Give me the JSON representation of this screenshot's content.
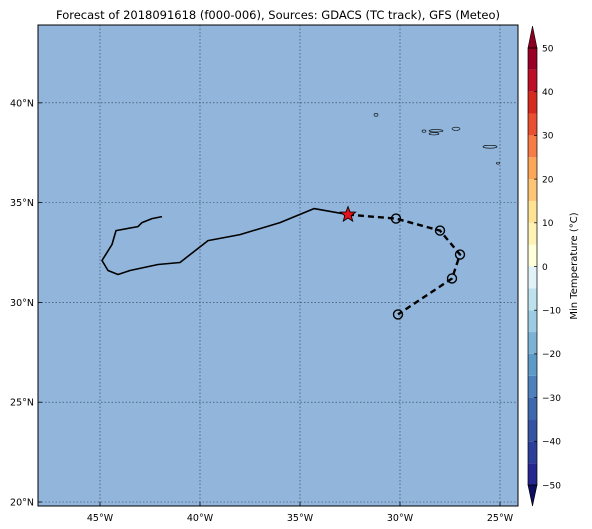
{
  "title": "Forecast of 2018091618 (f000-006), Sources: GDACS (TC track), GFS (Meteo)",
  "map": {
    "lon_range": [
      -48.1,
      -24.1
    ],
    "lat_range": [
      19.8,
      43.9
    ],
    "lon_ticks": [
      -45,
      -40,
      -35,
      -30,
      -25
    ],
    "lon_tick_labels": [
      "45°W",
      "40°W",
      "35°W",
      "30°W",
      "25°W"
    ],
    "lat_ticks": [
      20,
      25,
      30,
      35,
      40
    ],
    "lat_tick_labels": [
      "20°N",
      "25°N",
      "30°N",
      "35°N",
      "40°N"
    ],
    "ocean_color": "#92b5db",
    "grid": true
  },
  "track": {
    "past_color": "#000000",
    "past": [
      [
        -41.9,
        34.3
      ],
      [
        -42.4,
        34.2
      ],
      [
        -42.9,
        34.0
      ],
      [
        -43.1,
        33.8
      ],
      [
        -44.2,
        33.6
      ],
      [
        -44.4,
        32.9
      ],
      [
        -44.9,
        32.1
      ],
      [
        -44.6,
        31.6
      ],
      [
        -44.1,
        31.4
      ],
      [
        -43.5,
        31.6
      ],
      [
        -42.1,
        31.9
      ],
      [
        -41.0,
        32.0
      ],
      [
        -39.6,
        33.1
      ],
      [
        -38.0,
        33.4
      ],
      [
        -36.0,
        34.0
      ],
      [
        -34.3,
        34.7
      ],
      [
        -32.6,
        34.4
      ]
    ],
    "current_position": [
      -32.6,
      34.4
    ],
    "current_marker": "star",
    "current_color": "#e8101a",
    "forecast": [
      [
        -32.6,
        34.4
      ],
      [
        -30.2,
        34.2
      ],
      [
        -28.0,
        33.6
      ],
      [
        -27.0,
        32.4
      ],
      [
        -27.4,
        31.2
      ],
      [
        -30.1,
        29.4
      ]
    ],
    "forecast_points": [
      [
        -30.2,
        34.2
      ],
      [
        -28.0,
        33.6
      ],
      [
        -27.0,
        32.4
      ],
      [
        -27.4,
        31.2
      ],
      [
        -30.1,
        29.4
      ]
    ]
  },
  "islands": [
    {
      "name": "island-1",
      "lon": -31.2,
      "lat": 39.4,
      "rx": 0.1,
      "ry": 0.07
    },
    {
      "name": "island-2",
      "lon": -28.2,
      "lat": 38.6,
      "rx": 0.35,
      "ry": 0.06
    },
    {
      "name": "island-3",
      "lon": -28.3,
      "lat": 38.45,
      "rx": 0.25,
      "ry": 0.06
    },
    {
      "name": "island-4",
      "lon": -27.2,
      "lat": 38.7,
      "rx": 0.2,
      "ry": 0.08
    },
    {
      "name": "island-5",
      "lon": -28.8,
      "lat": 38.58,
      "rx": 0.1,
      "ry": 0.06
    },
    {
      "name": "island-6",
      "lon": -25.5,
      "lat": 37.8,
      "rx": 0.35,
      "ry": 0.07
    },
    {
      "name": "island-7",
      "lon": -25.1,
      "lat": 36.98,
      "rx": 0.08,
      "ry": 0.05
    }
  ],
  "colorbar": {
    "label": "Min Temperature (°C)",
    "tick_values": [
      -50,
      -40,
      -30,
      -20,
      -10,
      0,
      10,
      20,
      30,
      40,
      50
    ],
    "tick_labels": [
      "−50",
      "−40",
      "−30",
      "−20",
      "−10",
      "0",
      "10",
      "20",
      "30",
      "40",
      "50"
    ],
    "bands": [
      {
        "from": -55,
        "to": -50,
        "color": "#191970"
      },
      {
        "from": -50,
        "to": -45,
        "color": "#262690"
      },
      {
        "from": -45,
        "to": -40,
        "color": "#2b3f9a"
      },
      {
        "from": -40,
        "to": -35,
        "color": "#3653a3"
      },
      {
        "from": -35,
        "to": -30,
        "color": "#3d68ad"
      },
      {
        "from": -30,
        "to": -25,
        "color": "#4d80bd"
      },
      {
        "from": -25,
        "to": -20,
        "color": "#5d9ac8"
      },
      {
        "from": -20,
        "to": -15,
        "color": "#7bb2d6"
      },
      {
        "from": -15,
        "to": -10,
        "color": "#9ccce3"
      },
      {
        "from": -10,
        "to": -5,
        "color": "#bde2ee"
      },
      {
        "from": -5,
        "to": 0,
        "color": "#e0f3f8"
      },
      {
        "from": 0,
        "to": 5,
        "color": "#ffffd9"
      },
      {
        "from": 5,
        "to": 10,
        "color": "#fff2b6"
      },
      {
        "from": 10,
        "to": 15,
        "color": "#fee395"
      },
      {
        "from": 15,
        "to": 20,
        "color": "#fdc576"
      },
      {
        "from": 20,
        "to": 25,
        "color": "#fca65a"
      },
      {
        "from": 25,
        "to": 30,
        "color": "#f67c47"
      },
      {
        "from": 30,
        "to": 35,
        "color": "#e9502f"
      },
      {
        "from": 35,
        "to": 40,
        "color": "#d52b1f"
      },
      {
        "from": 40,
        "to": 45,
        "color": "#bd1026"
      },
      {
        "from": 45,
        "to": 50,
        "color": "#990026"
      },
      {
        "from": 50,
        "to": 55,
        "color": "#7a0020"
      }
    ],
    "range": [
      -50,
      50
    ],
    "extend_low_color": "#0c0c60",
    "extend_high_color": "#8b0020"
  }
}
